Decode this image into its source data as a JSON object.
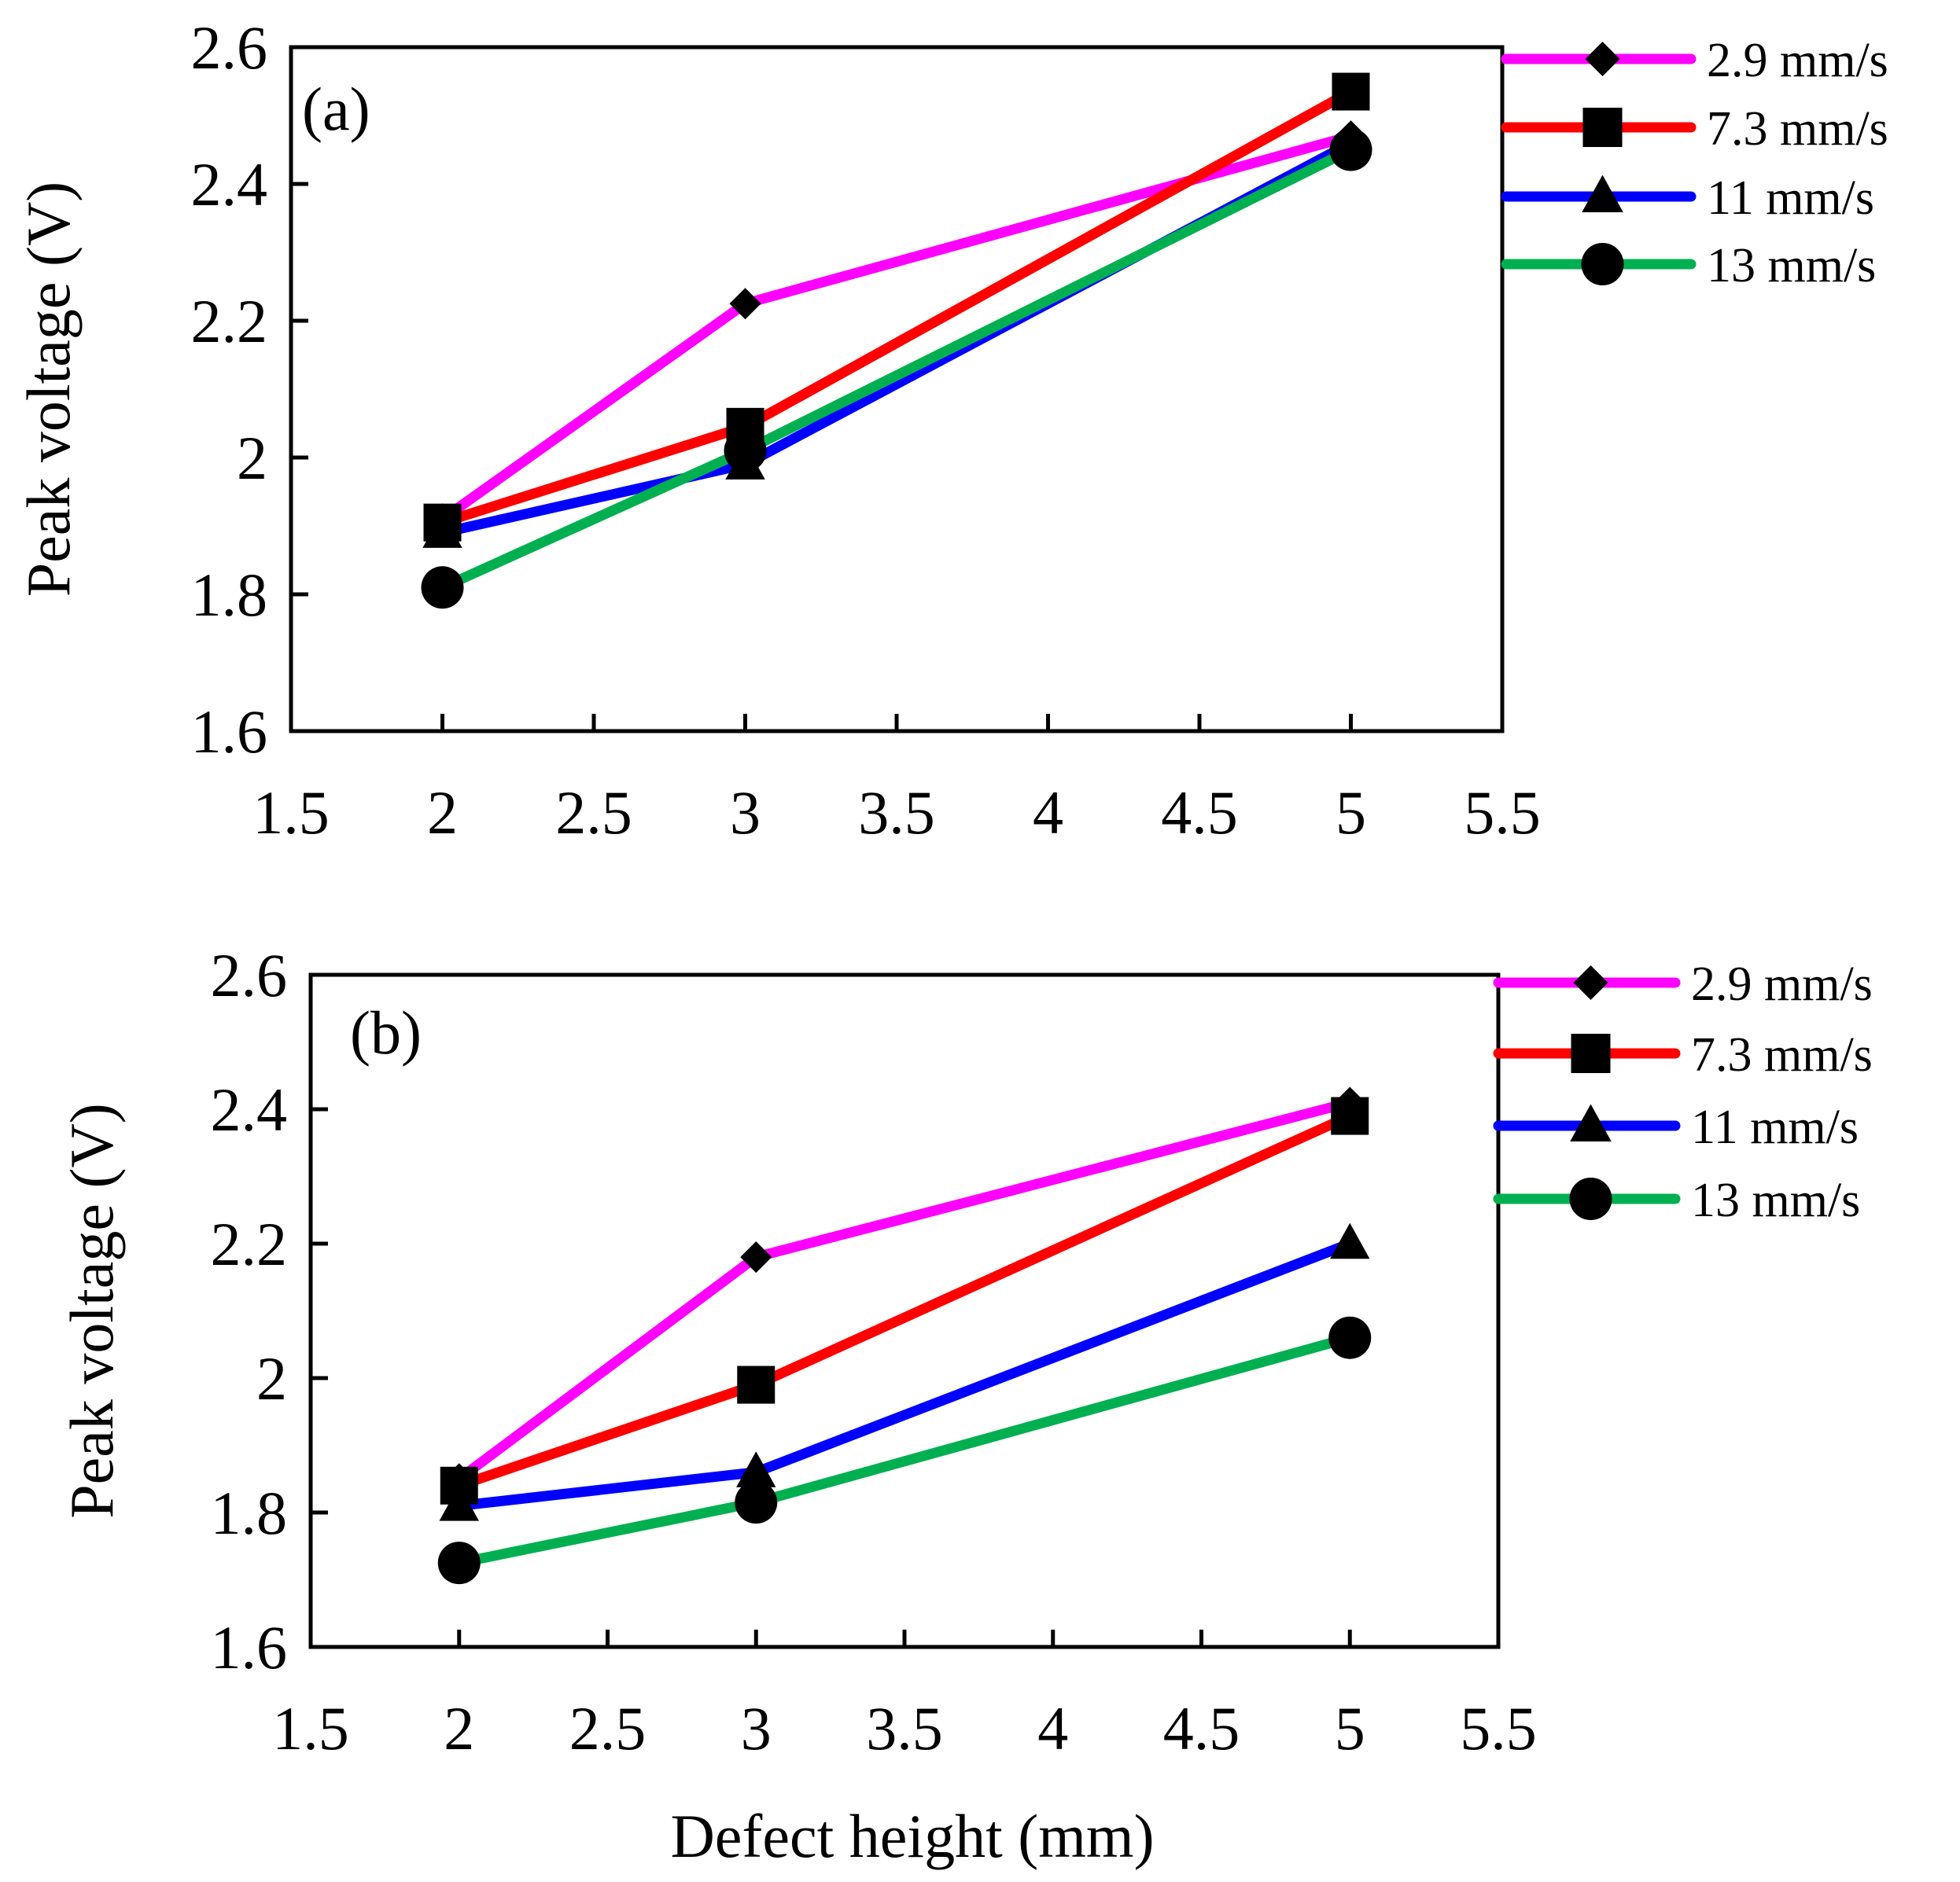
{
  "chart_data": [
    {
      "type": "line",
      "panel_label": "(a)",
      "xlabel": "",
      "ylabel": "Peak voltage (V)",
      "xlim": [
        1.5,
        5.5
      ],
      "ylim": [
        1.6,
        2.6
      ],
      "xticks": [
        1.5,
        2,
        2.5,
        3,
        3.5,
        4,
        4.5,
        5,
        5.5
      ],
      "xtick_labels": [
        "1.5",
        "2",
        "2.5",
        "3",
        "3.5",
        "4",
        "4.5",
        "5",
        "5.5"
      ],
      "yticks": [
        1.6,
        1.8,
        2.0,
        2.2,
        2.4,
        2.6
      ],
      "ytick_labels": [
        "1.6",
        "1.8",
        "2",
        "2.2",
        "2.4",
        "2.6"
      ],
      "grid": false,
      "legend_position": "right",
      "x": [
        2,
        3,
        5
      ],
      "series": [
        {
          "name": "2.9 mm/s",
          "marker": "diamond",
          "color": "#ff00ff",
          "values": [
            1.91,
            2.225,
            2.47
          ]
        },
        {
          "name": "7.3 mm/s",
          "marker": "square",
          "color": "#ff0000",
          "values": [
            1.905,
            2.045,
            2.535
          ]
        },
        {
          "name": "11 mm/s",
          "marker": "triangle",
          "color": "#0000ff",
          "values": [
            1.89,
            1.99,
            2.46
          ]
        },
        {
          "name": "13 mm/s",
          "marker": "circle",
          "color": "#00b050",
          "values": [
            1.81,
            2.01,
            2.45
          ]
        }
      ]
    },
    {
      "type": "line",
      "panel_label": "(b)",
      "xlabel": "Defect height (mm)",
      "ylabel": "Peak voltage (V)",
      "xlim": [
        1.5,
        5.5
      ],
      "ylim": [
        1.6,
        2.6
      ],
      "xticks": [
        1.5,
        2,
        2.5,
        3,
        3.5,
        4,
        4.5,
        5,
        5.5
      ],
      "xtick_labels": [
        "1.5",
        "2",
        "2.5",
        "3",
        "3.5",
        "4",
        "4.5",
        "5",
        "5.5"
      ],
      "yticks": [
        1.6,
        1.8,
        2.0,
        2.2,
        2.4,
        2.6
      ],
      "ytick_labels": [
        "1.6",
        "1.8",
        "2",
        "2.2",
        "2.4",
        "2.6"
      ],
      "grid": false,
      "legend_position": "right",
      "x": [
        2,
        3,
        5
      ],
      "series": [
        {
          "name": "2.9 mm/s",
          "marker": "diamond",
          "color": "#ff00ff",
          "values": [
            1.85,
            2.18,
            2.41
          ]
        },
        {
          "name": "7.3 mm/s",
          "marker": "square",
          "color": "#ff0000",
          "values": [
            1.84,
            1.99,
            2.39
          ]
        },
        {
          "name": "11 mm/s",
          "marker": "triangle",
          "color": "#0000ff",
          "values": [
            1.81,
            1.86,
            2.2
          ]
        },
        {
          "name": "13 mm/s",
          "marker": "circle",
          "color": "#00b050",
          "values": [
            1.725,
            1.815,
            2.06
          ]
        }
      ]
    }
  ]
}
